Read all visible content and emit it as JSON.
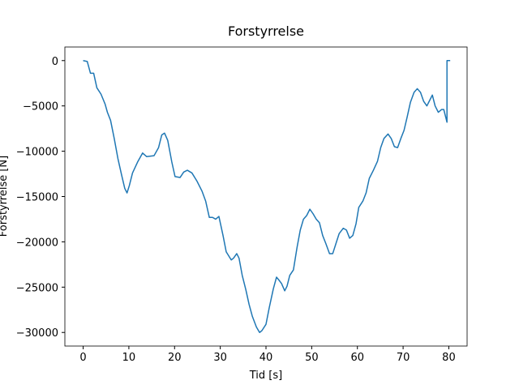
{
  "chart_data": {
    "type": "line",
    "title": "Forstyrrelse",
    "xlabel": "Tid [s]",
    "ylabel": "Forstyrrelse [N]",
    "x": [
      0,
      0.9,
      1.6,
      2.3,
      3.0,
      3.9,
      4.8,
      5.3,
      6.0,
      6.8,
      7.6,
      8.4,
      9.1,
      9.6,
      10.1,
      10.8,
      11.9,
      13.0,
      13.9,
      15.5,
      16.5,
      17.2,
      17.8,
      18.5,
      19.4,
      20.1,
      21.2,
      22.0,
      22.8,
      23.8,
      24.9,
      26.0,
      26.8,
      27.6,
      28.3,
      29.0,
      29.7,
      30.6,
      31.3,
      32.4,
      32.9,
      33.6,
      34.1,
      34.8,
      35.6,
      36.3,
      37.0,
      37.9,
      38.6,
      39.1,
      40.0,
      40.7,
      41.6,
      42.3,
      42.8,
      43.4,
      44.1,
      44.6,
      45.2,
      46.0,
      46.8,
      47.5,
      48.2,
      48.9,
      49.6,
      50.3,
      51.0,
      51.7,
      52.4,
      53.1,
      53.9,
      54.6,
      55.3,
      56.0,
      56.9,
      57.6,
      58.3,
      59.0,
      59.7,
      60.3,
      61.2,
      61.9,
      62.6,
      63.5,
      64.4,
      65.1,
      65.8,
      66.7,
      67.4,
      68.1,
      68.8,
      69.5,
      70.2,
      70.9,
      71.6,
      72.4,
      73.1,
      73.8,
      74.5,
      75.2,
      75.9,
      76.4,
      77.0,
      77.7,
      78.4,
      78.9,
      79.6,
      79.6,
      80.3
    ],
    "series": [
      {
        "name": "Forstyrrelse",
        "color": "#1f77b4",
        "values": [
          0,
          -100,
          -1400,
          -1400,
          -3000,
          -3700,
          -4800,
          -5700,
          -6600,
          -8600,
          -10800,
          -12600,
          -14100,
          -14600,
          -13800,
          -12400,
          -11200,
          -10200,
          -10600,
          -10500,
          -9600,
          -8200,
          -8000,
          -8800,
          -11200,
          -12800,
          -12900,
          -12300,
          -12100,
          -12400,
          -13300,
          -14400,
          -15500,
          -17300,
          -17300,
          -17500,
          -17200,
          -19300,
          -21100,
          -22000,
          -21800,
          -21300,
          -21800,
          -23700,
          -25300,
          -26900,
          -28200,
          -29400,
          -30000,
          -29800,
          -29100,
          -27300,
          -25200,
          -23900,
          -24200,
          -24600,
          -25400,
          -24900,
          -23700,
          -23100,
          -20600,
          -18700,
          -17500,
          -17100,
          -16400,
          -16900,
          -17500,
          -17900,
          -19300,
          -20200,
          -21300,
          -21300,
          -20200,
          -19100,
          -18500,
          -18700,
          -19600,
          -19300,
          -18000,
          -16200,
          -15500,
          -14600,
          -13000,
          -12100,
          -11100,
          -9600,
          -8600,
          -8100,
          -8600,
          -9500,
          -9600,
          -8600,
          -7700,
          -6200,
          -4600,
          -3500,
          -3100,
          -3500,
          -4500,
          -5000,
          -4300,
          -3800,
          -5000,
          -5700,
          -5400,
          -5400,
          -6800,
          0,
          0
        ]
      }
    ],
    "xlim": [
      -4,
      84
    ],
    "ylim": [
      -31500,
      1500
    ],
    "xticks": [
      0,
      10,
      20,
      30,
      40,
      50,
      60,
      70,
      80
    ],
    "yticks": [
      0,
      {
        "value": -5000,
        "label": "−5000"
      },
      {
        "value": -10000,
        "label": "−10000"
      },
      {
        "value": -15000,
        "label": "−15000"
      },
      {
        "value": -20000,
        "label": "−20000"
      },
      {
        "value": -25000,
        "label": "−25000"
      },
      {
        "value": -30000,
        "label": "−30000"
      }
    ],
    "grid": false
  }
}
